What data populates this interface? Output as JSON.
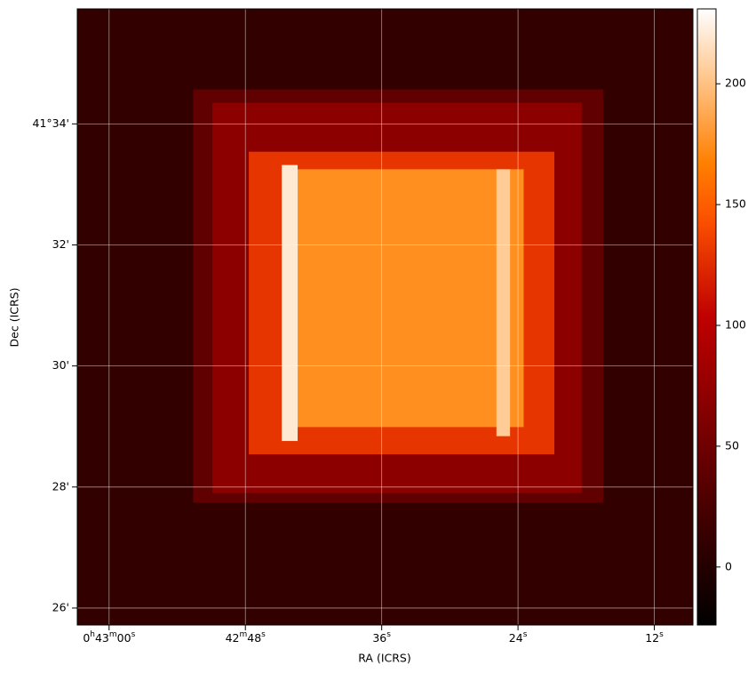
{
  "chart_data": {
    "type": "image",
    "xlabel": "RA (ICRS)",
    "ylabel": "Dec (ICRS)",
    "xlim": [
      2582.8,
      2528.6
    ],
    "xticks": [
      {
        "value": 2580,
        "label": "0h43m00s"
      },
      {
        "value": 2568,
        "label": "42m48s"
      },
      {
        "value": 2556,
        "label": "36s"
      },
      {
        "value": 2544,
        "label": "24s"
      },
      {
        "value": 2532,
        "label": "12s"
      }
    ],
    "ylim": [
      25.72,
      35.9
    ],
    "yticks": [
      {
        "value": 34,
        "label": "41°34'"
      },
      {
        "value": 32,
        "label": "32'"
      },
      {
        "value": 30,
        "label": "30'"
      },
      {
        "value": 28,
        "label": "28'"
      },
      {
        "value": 26,
        "label": "26'"
      }
    ],
    "grid": true,
    "colormap": "gist_heat",
    "clim": [
      -24,
      231
    ],
    "cticks": [
      0,
      50,
      100,
      150,
      200
    ],
    "regions": [
      {
        "ra": [
          2582.8,
          2528.6
        ],
        "dec": [
          25.72,
          35.9
        ],
        "value": 10
      },
      {
        "ra": [
          2572.6,
          2536.5
        ],
        "dec": [
          27.74,
          34.57
        ],
        "value": 40
      },
      {
        "ra": [
          2570.9,
          2538.4
        ],
        "dec": [
          27.9,
          34.35
        ],
        "value": 70
      },
      {
        "ra": [
          2567.7,
          2540.8
        ],
        "dec": [
          28.54,
          33.54
        ],
        "value": 130
      },
      {
        "ra": [
          2564.6,
          2543.5
        ],
        "dec": [
          28.99,
          33.25
        ],
        "value": 175
      },
      {
        "ra": [
          2564.8,
          2563.4
        ],
        "dec": [
          28.76,
          33.32
        ],
        "value": 220
      },
      {
        "ra": [
          2545.9,
          2544.7
        ],
        "dec": [
          28.84,
          33.25
        ],
        "value": 205
      }
    ]
  }
}
